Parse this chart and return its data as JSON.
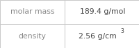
{
  "rows": [
    {
      "label": "molar mass",
      "value": "189.4 g/mol",
      "superscript": null
    },
    {
      "label": "density",
      "value": "2.56 g/cm",
      "superscript": "3"
    }
  ],
  "bg_color": "#ffffff",
  "border_color": "#c8c8c8",
  "label_color": "#888888",
  "value_color": "#444444",
  "font_size": 7.8,
  "col_split": 0.465,
  "fig_width": 2.01,
  "fig_height": 0.7
}
